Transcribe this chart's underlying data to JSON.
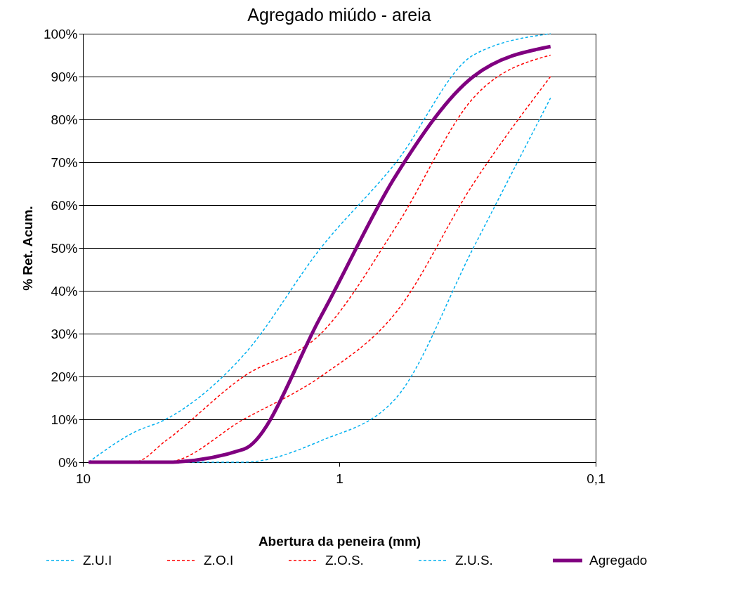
{
  "chart_data": {
    "type": "line",
    "title": "Agregado miúdo - areia",
    "xlabel": "Abertura da peneira (mm)",
    "ylabel": "% Ret. Acum.",
    "x": [
      9.5,
      6.3,
      4.75,
      2.36,
      1.18,
      0.6,
      0.3,
      0.15
    ],
    "log": "x",
    "xlim": [
      10,
      0.1
    ],
    "xticks": [
      10,
      1,
      {
        "value": 0.1,
        "label": "0,1"
      }
    ],
    "ylim": [
      0,
      100
    ],
    "yticks": [
      {
        "value": 0,
        "label": "0%"
      },
      {
        "value": 10,
        "label": "10%"
      },
      {
        "value": 20,
        "label": "20%"
      },
      {
        "value": 30,
        "label": "30%"
      },
      {
        "value": 40,
        "label": "40%"
      },
      {
        "value": 50,
        "label": "50%"
      },
      {
        "value": 60,
        "label": "60%"
      },
      {
        "value": 70,
        "label": "70%"
      },
      {
        "value": 80,
        "label": "80%"
      },
      {
        "value": 90,
        "label": "90%"
      },
      {
        "value": 100,
        "label": "100%"
      }
    ],
    "grid": "y",
    "legend": "bottom",
    "marker": "none",
    "series": [
      {
        "name": "Z.U.I",
        "color": "#00b0f0",
        "line_style": "dashed",
        "values": [
          0,
          7,
          10,
          25,
          50,
          70,
          95,
          100
        ]
      },
      {
        "name": "Z.O.I",
        "color": "#ff0000",
        "line_style": "dashed",
        "values": [
          0,
          0,
          5,
          20,
          30,
          55,
          85,
          95
        ]
      },
      {
        "name": "Z.O.S.",
        "color": "#ff0000",
        "line_style": "dashed",
        "values": [
          0,
          0,
          0,
          10,
          20,
          35,
          65,
          90
        ]
      },
      {
        "name": "Z.U.S.",
        "color": "#00b0f0",
        "line_style": "dashed",
        "values": [
          0,
          0,
          0,
          0,
          5,
          15,
          50,
          85
        ]
      },
      {
        "name": "Agregado",
        "color": "#800080",
        "line_style": "solid",
        "values": [
          0,
          0,
          0,
          3,
          34,
          67,
          90,
          97
        ]
      }
    ]
  }
}
